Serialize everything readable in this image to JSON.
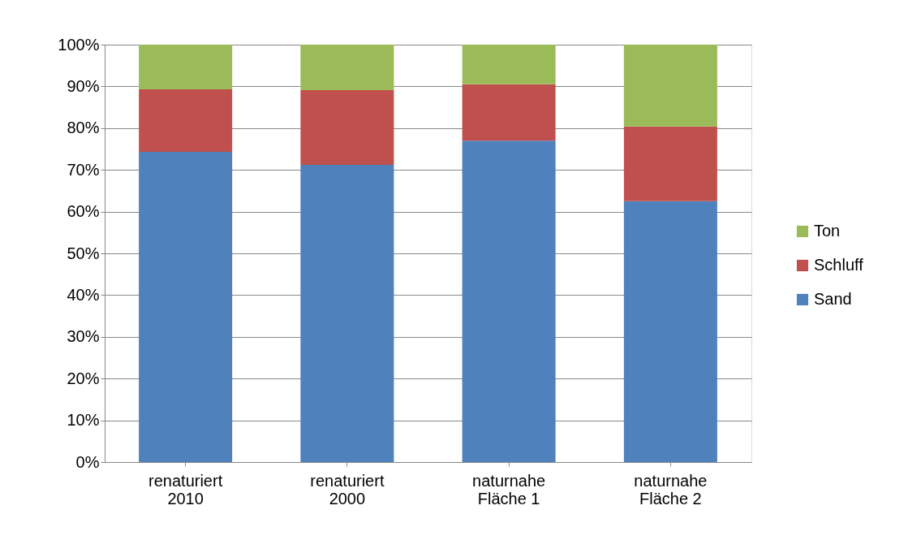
{
  "chart_data": {
    "type": "bar",
    "stacked": true,
    "categories": [
      "renaturiert 2010",
      "renaturiert 2000",
      "naturnahe Fläche 1",
      "naturnahe Fläche 2"
    ],
    "series": [
      {
        "name": "Sand",
        "color": "#4f81bd",
        "values": [
          74.3,
          71.2,
          77.0,
          62.5
        ]
      },
      {
        "name": "Schluff",
        "color": "#c0504d",
        "values": [
          15.0,
          17.9,
          13.5,
          17.9
        ]
      },
      {
        "name": "Ton",
        "color": "#9bbb59",
        "values": [
          10.7,
          10.9,
          9.5,
          19.6
        ]
      }
    ],
    "ylim": [
      0,
      100
    ],
    "yticks": [
      {
        "value": 0,
        "label": "0%"
      },
      {
        "value": 10,
        "label": "10%"
      },
      {
        "value": 20,
        "label": "20%"
      },
      {
        "value": 30,
        "label": "30%"
      },
      {
        "value": 40,
        "label": "40%"
      },
      {
        "value": 50,
        "label": "50%"
      },
      {
        "value": 60,
        "label": "60%"
      },
      {
        "value": 70,
        "label": "70%"
      },
      {
        "value": 80,
        "label": "80%"
      },
      {
        "value": 90,
        "label": "90%"
      },
      {
        "value": 100,
        "label": "100%"
      }
    ],
    "grid": "y",
    "legend": "right"
  }
}
